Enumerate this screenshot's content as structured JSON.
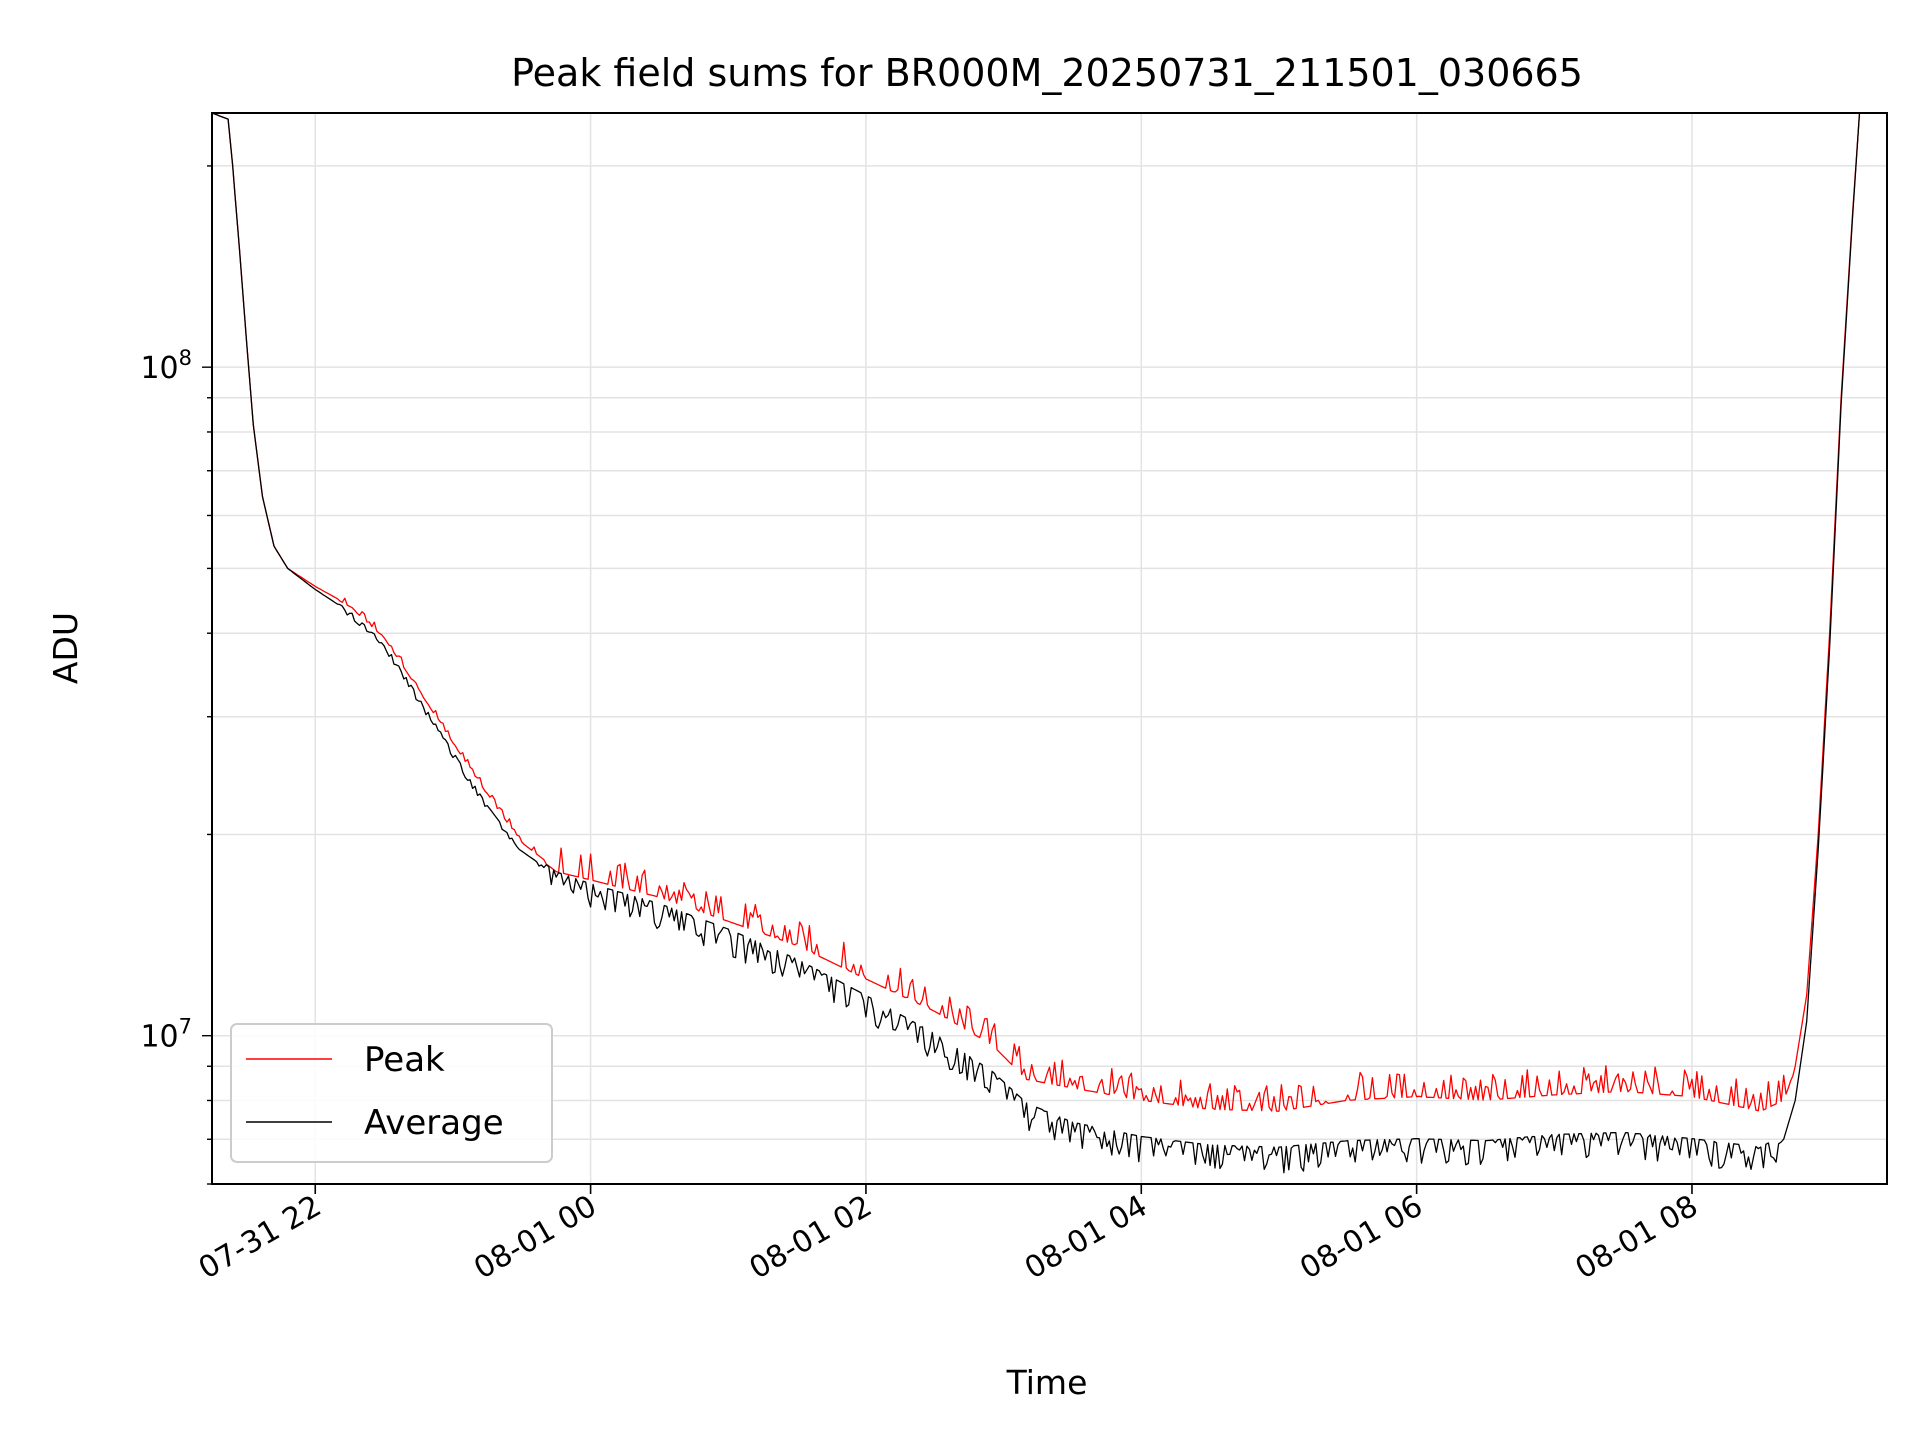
{
  "chart_data": {
    "type": "line",
    "title": "Peak field sums for BR000M_20250731_211501_030665",
    "xlabel": "Time",
    "ylabel": "ADU",
    "y_scale": "log",
    "ylim": [
      6000000,
      240000000
    ],
    "xlim": [
      "2025-07-31 21:15",
      "2025-08-01 09:25"
    ],
    "grid": true,
    "legend_position": "lower-left",
    "x_ticks": [
      {
        "t": "2025-07-31 22:00",
        "label": "07-31 22"
      },
      {
        "t": "2025-08-01 00:00",
        "label": "08-01 00"
      },
      {
        "t": "2025-08-01 02:00",
        "label": "08-01 02"
      },
      {
        "t": "2025-08-01 04:00",
        "label": "08-01 04"
      },
      {
        "t": "2025-08-01 06:00",
        "label": "08-01 06"
      },
      {
        "t": "2025-08-01 08:00",
        "label": "08-01 08"
      }
    ],
    "y_major_ticks": [
      {
        "value": 10000000,
        "base": "10",
        "exp": "7"
      },
      {
        "value": 100000000,
        "base": "10",
        "exp": "8"
      }
    ],
    "series": [
      {
        "name": "Peak",
        "color": "#ff0000",
        "points": [
          [
            "2025-07-31 21:15",
            240000000
          ],
          [
            "2025-07-31 21:22",
            235000000
          ],
          [
            "2025-07-31 21:24",
            200000000
          ],
          [
            "2025-07-31 21:27",
            150000000
          ],
          [
            "2025-07-31 21:30",
            110000000
          ],
          [
            "2025-07-31 21:33",
            82000000
          ],
          [
            "2025-07-31 21:37",
            64000000
          ],
          [
            "2025-07-31 21:42",
            54000000
          ],
          [
            "2025-07-31 21:48",
            50000000
          ],
          [
            "2025-07-31 22:00",
            47000000
          ],
          [
            "2025-07-31 22:15",
            44000000
          ],
          [
            "2025-07-31 22:30",
            39500000
          ],
          [
            "2025-07-31 22:45",
            33000000
          ],
          [
            "2025-07-31 23:00",
            27500000
          ],
          [
            "2025-07-31 23:15",
            23000000
          ],
          [
            "2025-07-31 23:30",
            19500000
          ],
          [
            "2025-07-31 23:45",
            17800000
          ],
          [
            "2025-08-01 00:00",
            17300000
          ],
          [
            "2025-08-01 00:30",
            16300000
          ],
          [
            "2025-08-01 01:00",
            15000000
          ],
          [
            "2025-08-01 01:30",
            13800000
          ],
          [
            "2025-08-01 02:00",
            12300000
          ],
          [
            "2025-08-01 02:30",
            11000000
          ],
          [
            "2025-08-01 02:55",
            9800000
          ],
          [
            "2025-08-01 03:10",
            8700000
          ],
          [
            "2025-08-01 03:30",
            8450000
          ],
          [
            "2025-08-01 04:00",
            8100000
          ],
          [
            "2025-08-01 04:30",
            7850000
          ],
          [
            "2025-08-01 05:00",
            7800000
          ],
          [
            "2025-08-01 05:30",
            8100000
          ],
          [
            "2025-08-01 06:00",
            8200000
          ],
          [
            "2025-08-01 06:30",
            8100000
          ],
          [
            "2025-08-01 07:00",
            8250000
          ],
          [
            "2025-08-01 07:30",
            8350000
          ],
          [
            "2025-08-01 08:00",
            8200000
          ],
          [
            "2025-08-01 08:30",
            7800000
          ],
          [
            "2025-08-01 08:40",
            8100000
          ],
          [
            "2025-08-01 08:45",
            9000000
          ],
          [
            "2025-08-01 08:50",
            11500000
          ],
          [
            "2025-08-01 08:55",
            20000000
          ],
          [
            "2025-08-01 09:00",
            40000000
          ],
          [
            "2025-08-01 09:05",
            90000000
          ],
          [
            "2025-08-01 09:10",
            170000000
          ],
          [
            "2025-08-01 09:13",
            240000000
          ]
        ]
      },
      {
        "name": "Average",
        "color": "#000000",
        "points": [
          [
            "2025-07-31 21:15",
            240000000
          ],
          [
            "2025-07-31 21:22",
            235000000
          ],
          [
            "2025-07-31 21:24",
            200000000
          ],
          [
            "2025-07-31 21:27",
            150000000
          ],
          [
            "2025-07-31 21:30",
            110000000
          ],
          [
            "2025-07-31 21:33",
            82000000
          ],
          [
            "2025-07-31 21:37",
            64000000
          ],
          [
            "2025-07-31 21:42",
            54000000
          ],
          [
            "2025-07-31 21:48",
            50000000
          ],
          [
            "2025-07-31 22:00",
            46500000
          ],
          [
            "2025-07-31 22:15",
            43000000
          ],
          [
            "2025-07-31 22:30",
            38500000
          ],
          [
            "2025-07-31 22:45",
            32000000
          ],
          [
            "2025-07-31 23:00",
            26500000
          ],
          [
            "2025-07-31 23:15",
            22000000
          ],
          [
            "2025-07-31 23:30",
            18800000
          ],
          [
            "2025-07-31 23:45",
            17300000
          ],
          [
            "2025-08-01 00:00",
            16600000
          ],
          [
            "2025-08-01 00:30",
            15500000
          ],
          [
            "2025-08-01 01:00",
            14200000
          ],
          [
            "2025-08-01 01:30",
            12800000
          ],
          [
            "2025-08-01 02:00",
            11300000
          ],
          [
            "2025-08-01 02:30",
            9900000
          ],
          [
            "2025-08-01 02:55",
            8700000
          ],
          [
            "2025-08-01 03:10",
            7800000
          ],
          [
            "2025-08-01 03:30",
            7300000
          ],
          [
            "2025-08-01 04:00",
            6950000
          ],
          [
            "2025-08-01 04:30",
            6750000
          ],
          [
            "2025-08-01 05:00",
            6700000
          ],
          [
            "2025-08-01 05:30",
            6850000
          ],
          [
            "2025-08-01 06:00",
            6900000
          ],
          [
            "2025-08-01 06:30",
            6850000
          ],
          [
            "2025-08-01 07:00",
            7000000
          ],
          [
            "2025-08-01 07:30",
            7050000
          ],
          [
            "2025-08-01 08:00",
            6900000
          ],
          [
            "2025-08-01 08:30",
            6700000
          ],
          [
            "2025-08-01 08:40",
            7000000
          ],
          [
            "2025-08-01 08:45",
            8000000
          ],
          [
            "2025-08-01 08:50",
            10500000
          ],
          [
            "2025-08-01 08:55",
            19000000
          ],
          [
            "2025-08-01 09:00",
            38000000
          ],
          [
            "2025-08-01 09:05",
            88000000
          ],
          [
            "2025-08-01 09:10",
            168000000
          ],
          [
            "2025-08-01 09:13",
            240000000
          ]
        ]
      }
    ]
  }
}
